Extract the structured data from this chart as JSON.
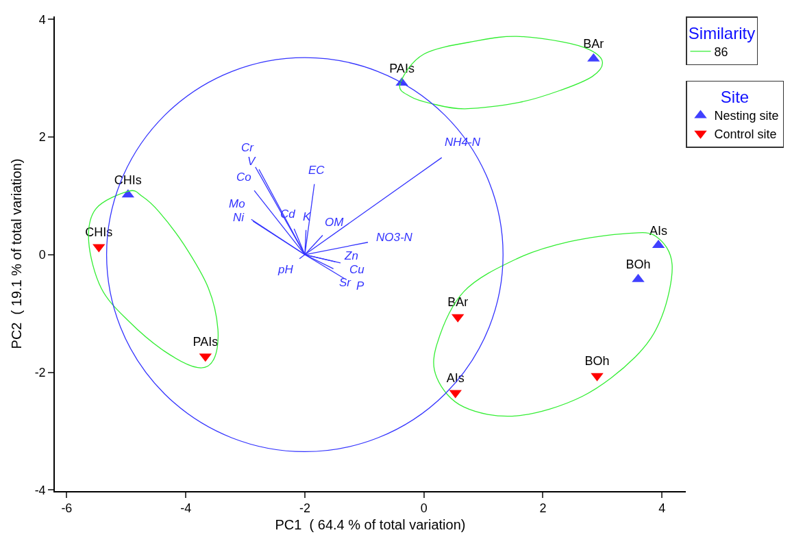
{
  "chart_data": {
    "type": "scatter",
    "xlabel": "PC1  ( 64.4 % of total variation)",
    "ylabel": "PC2  ( 19.1 % of total variation)",
    "legend_title": [
      "Similarity",
      "Site"
    ],
    "legend": "top right",
    "xlim": [
      -6.2,
      4.4
    ],
    "ylim": [
      -4.02,
      4.05
    ],
    "xticks": [
      -6,
      -4,
      -2,
      0,
      2,
      4
    ],
    "yticks": [
      -4,
      -2,
      0,
      2,
      4
    ],
    "grid": false,
    "annotations": [
      {
        "text": "Cr",
        "x": -2.83,
        "y": 1.49
      },
      {
        "text": "V",
        "x": -2.77,
        "y": 1.45
      },
      {
        "text": "Co",
        "x": -2.85,
        "y": 1.09
      },
      {
        "text": "Mo",
        "x": -2.9,
        "y": 0.6
      },
      {
        "text": "Ni",
        "x": -2.87,
        "y": 0.57
      },
      {
        "text": "Cd",
        "x": -2.18,
        "y": 0.44
      },
      {
        "text": "K",
        "x": -1.98,
        "y": 0.42
      },
      {
        "text": "EC",
        "x": -1.84,
        "y": 1.2
      },
      {
        "text": "OM",
        "x": -1.7,
        "y": 0.33
      },
      {
        "text": "NO3-N",
        "x": -0.94,
        "y": 0.21
      },
      {
        "text": "NH4-N",
        "x": 0.3,
        "y": 1.65
      },
      {
        "text": "pH",
        "x": -2.09,
        "y": -0.07
      },
      {
        "text": "Zn",
        "x": -1.49,
        "y": -0.12
      },
      {
        "text": "Sr",
        "x": -1.52,
        "y": -0.24
      },
      {
        "text": "Cu",
        "x": -1.4,
        "y": -0.14
      },
      {
        "text": "P",
        "x": -1.33,
        "y": -0.41
      }
    ],
    "series": [
      {
        "name": "86",
        "type": "line",
        "color": "#33ee33"
      },
      {
        "type": "line",
        "color": "#3333ff",
        "x": [
          -2,
          -2.83,
          null,
          -2,
          -2.77,
          null,
          -2,
          -2.85,
          null,
          -2,
          -2.9,
          null,
          -2,
          -2.87,
          null,
          -2,
          -2.18,
          null,
          -2,
          -1.98,
          null,
          -2,
          -1.84,
          null,
          -2,
          -1.7,
          null,
          -2,
          -0.94,
          null,
          -2,
          0.3,
          null,
          -2,
          -2.09,
          null,
          -2,
          -1.49,
          null,
          -2,
          -1.52,
          null,
          -2,
          -1.4,
          null,
          -2,
          -1.33
        ],
        "values": [
          0,
          1.49,
          null,
          0,
          1.45,
          null,
          0,
          1.09,
          null,
          0,
          0.6,
          null,
          0,
          0.57,
          null,
          0,
          0.44,
          null,
          0,
          0.42,
          null,
          0,
          1.2,
          null,
          0,
          0.33,
          null,
          0,
          0.21,
          null,
          0,
          1.65,
          null,
          0,
          -0.07,
          null,
          0,
          -0.12,
          null,
          0,
          -0.24,
          null,
          0,
          -0.14,
          null,
          0,
          -0.41
        ]
      },
      {
        "name": "Nesting site",
        "type": "scatter",
        "marker": "triangle",
        "color": "#4040ff",
        "x": [
          -4.97,
          -0.37,
          2.85,
          3.94,
          3.6
        ],
        "values": [
          1.02,
          2.92,
          3.33,
          0.16,
          -0.42
        ],
        "value_labels": [
          "CHIs",
          "PAIs",
          "BAr",
          "AIs",
          "BOh"
        ]
      },
      {
        "name": "Control site",
        "marker": "triangle-down",
        "color": "#ff0000",
        "x": [
          -5.46,
          -3.67,
          0.57,
          0.53,
          2.91
        ],
        "values": [
          0.13,
          -1.73,
          -1.06,
          -2.35,
          -2.06
        ],
        "value_labels": [
          "CHIs",
          "PAIs",
          "BAr",
          "AIs",
          "BOh"
        ]
      }
    ]
  }
}
